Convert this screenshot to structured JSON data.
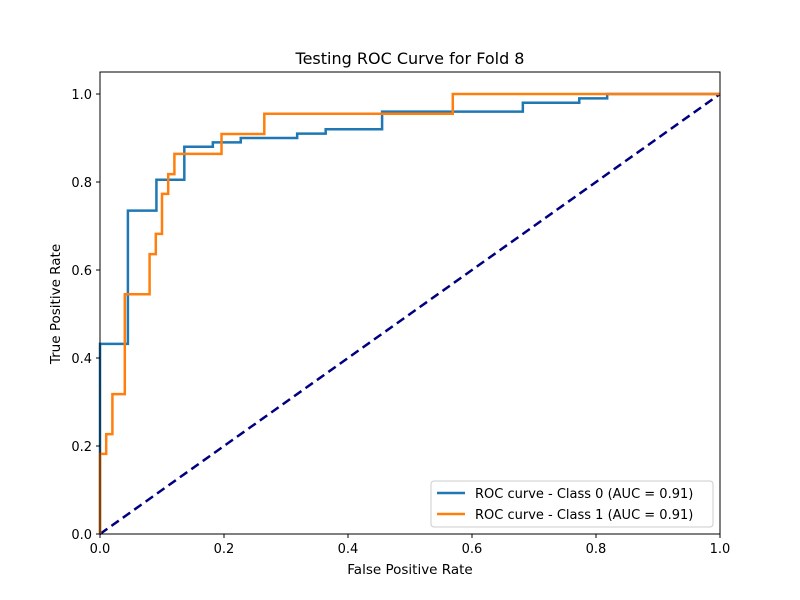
{
  "chart_data": {
    "type": "line",
    "title": "Testing ROC Curve for Fold 8",
    "xlabel": "False Positive Rate",
    "ylabel": "True Positive Rate",
    "xlim": [
      0.0,
      1.0
    ],
    "ylim": [
      0.0,
      1.05
    ],
    "xticks": [
      "0.0",
      "0.2",
      "0.4",
      "0.6",
      "0.8",
      "1.0"
    ],
    "yticks": [
      "0.0",
      "0.2",
      "0.4",
      "0.6",
      "0.8",
      "1.0"
    ],
    "grid": false,
    "legend_position": "lower right",
    "series": [
      {
        "name": "ROC curve - Class 0 (AUC = 0.91)",
        "color": "#1f77b4",
        "step": true,
        "x": [
          0.0,
          0.0,
          0.045,
          0.045,
          0.091,
          0.091,
          0.136,
          0.136,
          0.182,
          0.182,
          0.227,
          0.227,
          0.318,
          0.318,
          0.364,
          0.364,
          0.455,
          0.455,
          0.682,
          0.682,
          0.773,
          0.773,
          0.818,
          0.818,
          1.0
        ],
        "y": [
          0.0,
          0.432,
          0.432,
          0.735,
          0.735,
          0.805,
          0.805,
          0.88,
          0.88,
          0.89,
          0.89,
          0.9,
          0.9,
          0.91,
          0.91,
          0.92,
          0.92,
          0.96,
          0.96,
          0.98,
          0.98,
          0.99,
          0.99,
          1.0,
          1.0
        ]
      },
      {
        "name": "ROC curve - Class 1 (AUC = 0.91)",
        "color": "#ff7f0e",
        "step": true,
        "x": [
          0.0,
          0.0,
          0.01,
          0.01,
          0.02,
          0.02,
          0.04,
          0.04,
          0.08,
          0.08,
          0.09,
          0.09,
          0.1,
          0.1,
          0.11,
          0.11,
          0.12,
          0.12,
          0.196,
          0.196,
          0.265,
          0.265,
          0.569,
          0.569,
          1.0
        ],
        "y": [
          0.0,
          0.182,
          0.182,
          0.227,
          0.227,
          0.318,
          0.318,
          0.545,
          0.545,
          0.636,
          0.636,
          0.682,
          0.682,
          0.773,
          0.773,
          0.818,
          0.818,
          0.864,
          0.864,
          0.909,
          0.909,
          0.955,
          0.955,
          1.0,
          1.0
        ]
      },
      {
        "name": "",
        "color": "#000080",
        "dashed": true,
        "x": [
          0.0,
          1.0
        ],
        "y": [
          0.0,
          1.0
        ]
      }
    ]
  }
}
